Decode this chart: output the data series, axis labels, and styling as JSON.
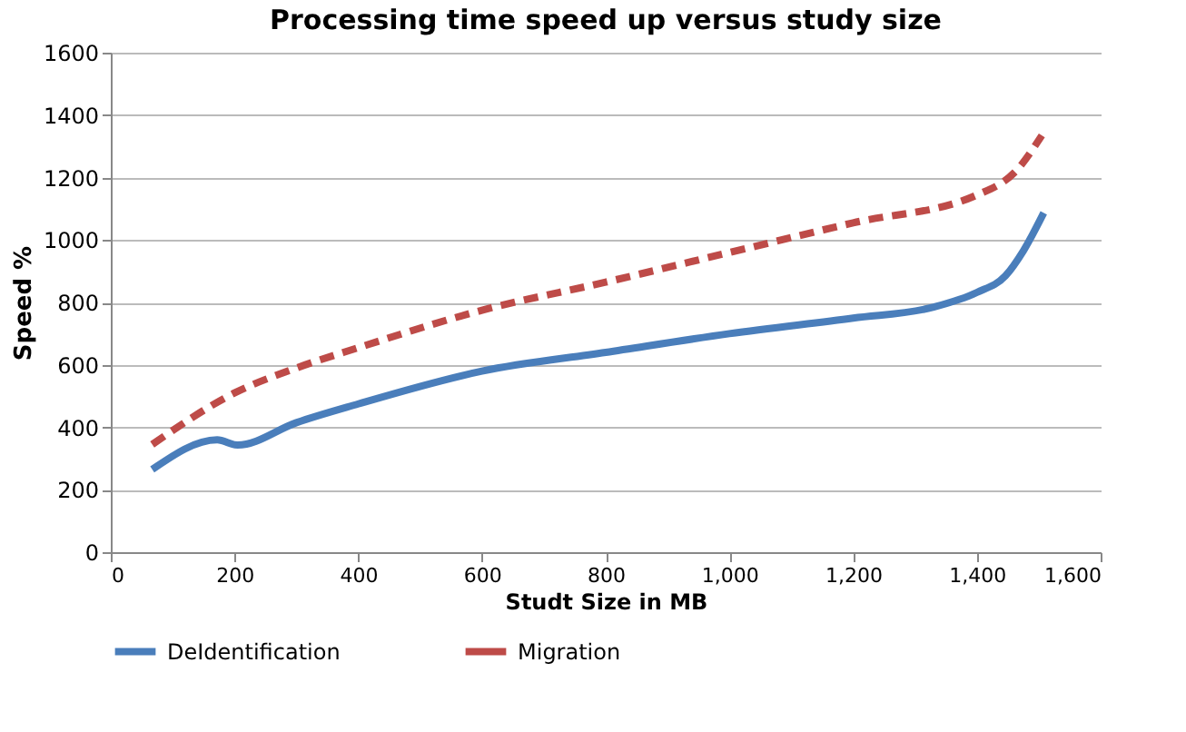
{
  "chart_data": {
    "type": "line",
    "title": "Processing time speed up versus study size",
    "xlabel": "Studt Size in MB",
    "ylabel": "Speed %",
    "xlim": [
      0,
      1600
    ],
    "xticks": [
      0,
      200,
      400,
      600,
      800,
      {
        "value": 1000,
        "label": "1,000"
      },
      {
        "value": 1200,
        "label": "1,200"
      },
      {
        "value": 1400,
        "label": "1,400"
      },
      {
        "value": 1600,
        "label": "1,600"
      }
    ],
    "ylim": [
      0,
      1600
    ],
    "yticks": [
      0,
      200,
      400,
      600,
      800,
      1000,
      1200,
      1400,
      1600
    ],
    "grid": "y",
    "legend": "bottom",
    "series": [
      {
        "name": "DeIdentification",
        "color": "#4a7ebb",
        "line_style": "solid",
        "x": [
          67,
          172,
          205,
          300,
          400,
          600,
          800,
          1000,
          1200,
          1330,
          1400,
          1446,
          1475,
          1508
        ],
        "values": [
          265,
          360,
          343,
          415,
          475,
          580,
          640,
          700,
          750,
          785,
          832,
          885,
          965,
          1087
        ]
      },
      {
        "name": "Migration",
        "color": "#be4b48",
        "line_style": "dashed",
        "x": [
          67,
          200,
          300,
          400,
          600,
          800,
          1000,
          1200,
          1400,
          1465,
          1505
        ],
        "values": [
          345,
          510,
          590,
          655,
          775,
          865,
          960,
          1055,
          1144,
          1225,
          1335
        ]
      }
    ]
  }
}
